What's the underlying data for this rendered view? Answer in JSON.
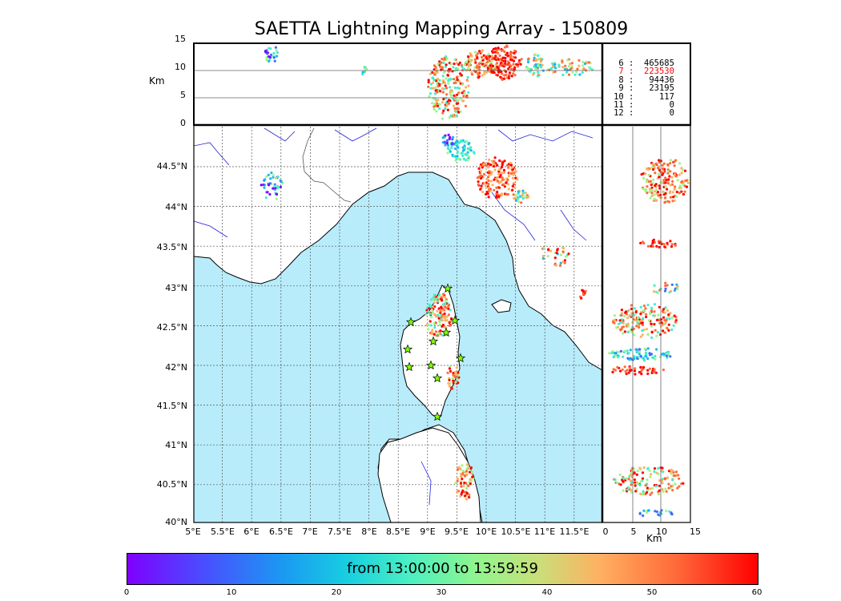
{
  "title": "SAETTA Lightning Mapping Array - 150809",
  "top_panel": {
    "axis_label": "Km",
    "y_ticks": [
      "15",
      "10",
      "5",
      "0"
    ]
  },
  "map": {
    "lat_ticks": [
      "44.5°N",
      "44°N",
      "43.5°N",
      "43°N",
      "42.5°N",
      "42°N",
      "41.5°N",
      "41°N",
      "40.5°N",
      "40°N"
    ],
    "lon_ticks": [
      "5°E",
      "5.5°E",
      "6°E",
      "6.5°E",
      "7°E",
      "7.5°E",
      "8°E",
      "8.5°E",
      "9°E",
      "9.5°E",
      "10°E",
      "10.5°E",
      "11°E",
      "11.5°E"
    ]
  },
  "side_panel": {
    "axis_label": "Km",
    "x_ticks": [
      "0",
      "5",
      "10",
      "15"
    ]
  },
  "stats": [
    {
      "label": "6",
      "value": "465685",
      "color": "#000000"
    },
    {
      "label": "7",
      "value": "223530",
      "color": "#ff0000"
    },
    {
      "label": "8",
      "value": "94436",
      "color": "#000000"
    },
    {
      "label": "9",
      "value": "23195",
      "color": "#000000"
    },
    {
      "label": "10",
      "value": "117",
      "color": "#000000"
    },
    {
      "label": "11",
      "value": "0",
      "color": "#000000"
    },
    {
      "label": "12",
      "value": "0",
      "color": "#000000"
    }
  ],
  "colorbar": {
    "label": "from 13:00:00 to 13:59:59",
    "ticks": [
      "0",
      "10",
      "20",
      "30",
      "40",
      "50",
      "60"
    ]
  },
  "colors": {
    "sea": "#b8ecfb",
    "coast": "#000000",
    "river": "#2222dd",
    "station_star": "#7fff00"
  }
}
